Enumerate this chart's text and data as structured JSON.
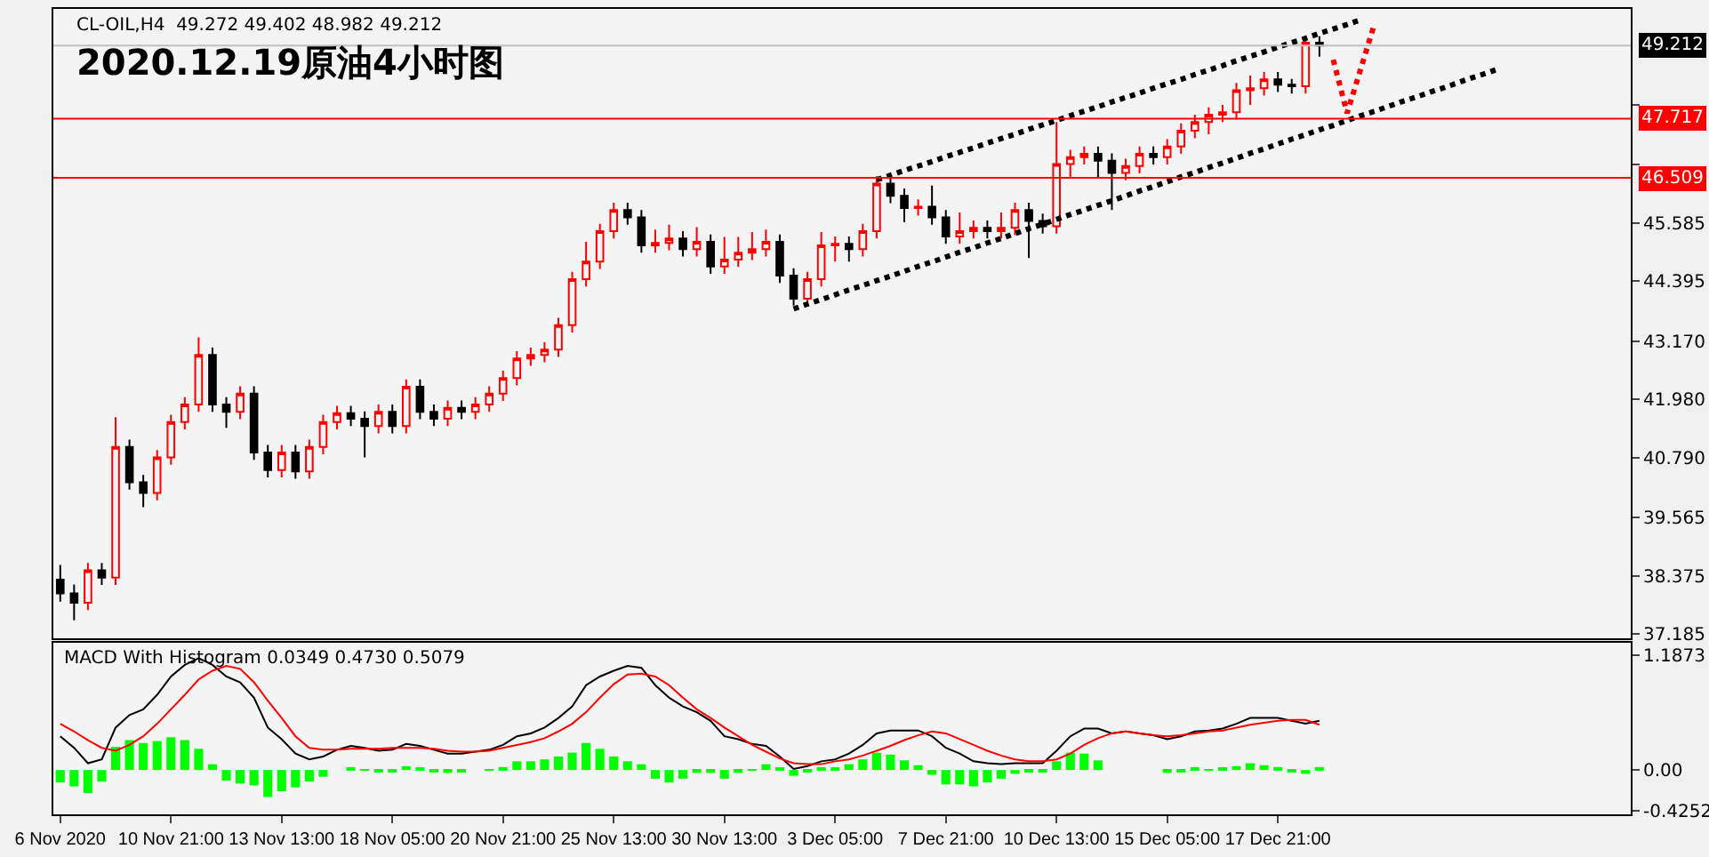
{
  "chart_data": [
    {
      "type": "candlestick",
      "title": "2020.12.19原油4小时图",
      "subtitle": "CL-OIL,H4  49.272 49.402 48.982 49.212",
      "categories": [
        null,
        null,
        null,
        null,
        null,
        null,
        null,
        null,
        null,
        null,
        null,
        null,
        null,
        null,
        null,
        null,
        null,
        null,
        null,
        null,
        null,
        null,
        null,
        null,
        null,
        null,
        null,
        null,
        null,
        null,
        null,
        null,
        null,
        null,
        null,
        null,
        null,
        null,
        null,
        null,
        null,
        null,
        null,
        null,
        null,
        null,
        null,
        null,
        null,
        null,
        null,
        null,
        null,
        null,
        null,
        null,
        null,
        null,
        null,
        null,
        null,
        null,
        null,
        null,
        null,
        null,
        null,
        null,
        null,
        null,
        null,
        null,
        null,
        null,
        null,
        null,
        null,
        null,
        null,
        null,
        null,
        null,
        null,
        null,
        null,
        null,
        null,
        null,
        null,
        null,
        null,
        null,
        null,
        null,
        null,
        null,
        null,
        null,
        null,
        null,
        null,
        null,
        null,
        null,
        null,
        null,
        null,
        null,
        null,
        null,
        null,
        null,
        null,
        null
      ],
      "ohlc": [
        [
          38.3,
          38.6,
          37.85,
          38.02
        ],
        [
          38.02,
          38.2,
          37.47,
          37.83
        ],
        [
          37.83,
          38.64,
          37.68,
          38.49
        ],
        [
          38.49,
          38.64,
          38.19,
          38.34
        ],
        [
          38.34,
          41.62,
          38.19,
          41.01
        ],
        [
          41.01,
          41.16,
          40.14,
          40.29
        ],
        [
          40.29,
          40.44,
          39.78,
          40.07
        ],
        [
          40.07,
          40.95,
          39.92,
          40.8
        ],
        [
          40.8,
          41.67,
          40.65,
          41.52
        ],
        [
          41.52,
          42.03,
          41.37,
          41.88
        ],
        [
          41.88,
          43.25,
          41.73,
          42.89
        ],
        [
          42.89,
          43.04,
          41.73,
          41.88
        ],
        [
          41.88,
          42.03,
          41.4,
          41.73
        ],
        [
          41.73,
          42.25,
          41.58,
          42.1
        ],
        [
          42.1,
          42.25,
          40.75,
          40.9
        ],
        [
          40.9,
          41.05,
          40.39,
          40.54
        ],
        [
          40.54,
          41.05,
          40.39,
          40.9
        ],
        [
          40.9,
          41.05,
          40.36,
          40.51
        ],
        [
          40.51,
          41.16,
          40.36,
          41.01
        ],
        [
          41.01,
          41.67,
          40.86,
          41.52
        ],
        [
          41.52,
          41.85,
          41.37,
          41.7
        ],
        [
          41.7,
          41.85,
          41.44,
          41.59
        ],
        [
          41.59,
          41.74,
          40.8,
          41.44
        ],
        [
          41.44,
          41.88,
          41.29,
          41.73
        ],
        [
          41.73,
          41.88,
          41.29,
          41.44
        ],
        [
          41.44,
          42.39,
          41.29,
          42.24
        ],
        [
          42.24,
          42.39,
          41.58,
          41.73
        ],
        [
          41.73,
          41.88,
          41.44,
          41.59
        ],
        [
          41.59,
          41.96,
          41.44,
          41.81
        ],
        [
          41.81,
          41.96,
          41.58,
          41.73
        ],
        [
          41.73,
          42.03,
          41.58,
          41.88
        ],
        [
          41.88,
          42.25,
          41.73,
          42.1
        ],
        [
          42.1,
          42.57,
          41.95,
          42.42
        ],
        [
          42.42,
          42.97,
          42.27,
          42.82
        ],
        [
          42.82,
          43.04,
          42.67,
          42.89
        ],
        [
          42.89,
          43.15,
          42.74,
          43.0
        ],
        [
          43.0,
          43.65,
          42.85,
          43.5
        ],
        [
          43.5,
          44.59,
          43.35,
          44.44
        ],
        [
          44.44,
          45.2,
          44.29,
          44.8
        ],
        [
          44.8,
          45.57,
          44.65,
          45.42
        ],
        [
          45.42,
          46.0,
          45.27,
          45.85
        ],
        [
          45.85,
          46.0,
          45.55,
          45.7
        ],
        [
          45.7,
          45.85,
          44.98,
          45.13
        ],
        [
          45.13,
          45.45,
          44.98,
          45.18
        ],
        [
          45.18,
          45.55,
          45.03,
          45.27
        ],
        [
          45.27,
          45.42,
          44.9,
          45.05
        ],
        [
          45.05,
          45.5,
          44.9,
          45.2
        ],
        [
          45.2,
          45.35,
          44.55,
          44.7
        ],
        [
          44.7,
          45.3,
          44.55,
          44.84
        ],
        [
          44.84,
          45.3,
          44.69,
          44.98
        ],
        [
          44.98,
          45.4,
          44.83,
          45.05
        ],
        [
          45.05,
          45.45,
          44.9,
          45.2
        ],
        [
          45.2,
          45.35,
          44.36,
          44.51
        ],
        [
          44.51,
          44.66,
          43.9,
          44.04
        ],
        [
          44.04,
          44.59,
          43.95,
          44.44
        ],
        [
          44.44,
          45.4,
          44.29,
          45.13
        ],
        [
          45.13,
          45.31,
          44.8,
          45.16
        ],
        [
          45.16,
          45.31,
          44.8,
          45.05
        ],
        [
          45.05,
          45.57,
          44.9,
          45.42
        ],
        [
          45.42,
          46.54,
          45.27,
          46.39
        ],
        [
          46.39,
          46.54,
          45.99,
          46.14
        ],
        [
          46.14,
          46.29,
          45.6,
          45.89
        ],
        [
          45.89,
          46.07,
          45.74,
          45.92
        ],
        [
          45.92,
          46.35,
          45.55,
          45.7
        ],
        [
          45.7,
          45.85,
          45.16,
          45.31
        ],
        [
          45.31,
          45.8,
          45.16,
          45.42
        ],
        [
          45.42,
          45.64,
          45.27,
          45.49
        ],
        [
          45.49,
          45.64,
          45.27,
          45.42
        ],
        [
          45.42,
          45.8,
          45.27,
          45.49
        ],
        [
          45.49,
          46.0,
          45.34,
          45.85
        ],
        [
          45.85,
          46.0,
          44.87,
          45.63
        ],
        [
          45.63,
          45.78,
          45.37,
          45.52
        ],
        [
          45.52,
          47.65,
          45.37,
          46.79
        ],
        [
          46.79,
          47.08,
          46.5,
          46.93
        ],
        [
          46.93,
          47.15,
          46.78,
          47.0
        ],
        [
          47.0,
          47.15,
          46.5,
          46.86
        ],
        [
          46.86,
          47.01,
          45.85,
          46.61
        ],
        [
          46.61,
          46.9,
          46.46,
          46.75
        ],
        [
          46.75,
          47.15,
          46.6,
          47.0
        ],
        [
          47.0,
          47.15,
          46.78,
          46.93
        ],
        [
          46.93,
          47.3,
          46.78,
          47.15
        ],
        [
          47.15,
          47.62,
          47.0,
          47.47
        ],
        [
          47.47,
          47.8,
          47.32,
          47.65
        ],
        [
          47.65,
          47.95,
          47.4,
          47.8
        ],
        [
          47.8,
          48.0,
          47.65,
          47.85
        ],
        [
          47.85,
          48.45,
          47.7,
          48.3
        ],
        [
          48.3,
          48.6,
          48.0,
          48.34
        ],
        [
          48.34,
          48.67,
          48.19,
          48.52
        ],
        [
          48.52,
          48.67,
          48.26,
          48.41
        ],
        [
          48.41,
          48.53,
          48.23,
          48.38
        ],
        [
          48.38,
          49.35,
          48.23,
          49.27
        ],
        [
          49.272,
          49.402,
          48.982,
          49.212
        ],
        null,
        null,
        null,
        null,
        null,
        null,
        null,
        null,
        null,
        null,
        null,
        null,
        null,
        null,
        null,
        null,
        null,
        null,
        null,
        null,
        null,
        null
      ],
      "colors": [
        "#000000",
        "#000000",
        "#ff0000",
        "#000000",
        "#ff0000",
        "#000000",
        "#000000",
        "#ff0000",
        "#ff0000",
        "#ff0000",
        "#ff0000",
        "#000000",
        "#000000",
        "#ff0000",
        "#000000",
        "#000000",
        "#ff0000",
        "#000000",
        "#ff0000",
        "#ff0000",
        "#ff0000",
        "#000000",
        "#000000",
        "#ff0000",
        "#000000",
        "#ff0000",
        "#000000",
        "#000000",
        "#ff0000",
        "#000000",
        "#ff0000",
        "#ff0000",
        "#ff0000",
        "#ff0000",
        "#ff0000",
        "#ff0000",
        "#ff0000",
        "#ff0000",
        "#ff0000",
        "#ff0000",
        "#ff0000",
        "#000000",
        "#000000",
        "#ff0000",
        "#ff0000",
        "#000000",
        "#ff0000",
        "#000000",
        "#ff0000",
        "#ff0000",
        "#ff0000",
        "#ff0000",
        "#000000",
        "#000000",
        "#ff0000",
        "#ff0000",
        "#ff0000",
        "#000000",
        "#ff0000",
        "#ff0000",
        "#000000",
        "#000000",
        "#ff0000",
        "#000000",
        "#000000",
        "#ff0000",
        "#ff0000",
        "#000000",
        "#ff0000",
        "#ff0000",
        "#000000",
        "#000000",
        "#ff0000",
        "#ff0000",
        "#ff0000",
        "#000000",
        "#000000",
        "#ff0000",
        "#ff0000",
        "#000000",
        "#ff0000",
        "#ff0000",
        "#ff0000",
        "#ff0000",
        "#ff0000",
        "#ff0000",
        "#ff0000",
        "#ff0000",
        "#000000",
        "#000000",
        "#ff0000",
        "#000000",
        null,
        null,
        null,
        null,
        null,
        null,
        null,
        null,
        null,
        null,
        null,
        null,
        null,
        null,
        null,
        null,
        null,
        null,
        null,
        null,
        null,
        null
      ],
      "series": [
        {
          "type": "line",
          "color": "#000000",
          "line_style": "dotted",
          "values": [
            null,
            null,
            null,
            null,
            null,
            null,
            null,
            null,
            null,
            null,
            null,
            null,
            null,
            null,
            null,
            null,
            null,
            null,
            null,
            null,
            null,
            null,
            null,
            null,
            null,
            null,
            null,
            null,
            null,
            null,
            null,
            null,
            null,
            null,
            null,
            null,
            null,
            null,
            null,
            null,
            null,
            null,
            null,
            null,
            null,
            null,
            null,
            null,
            null,
            null,
            null,
            null,
            null,
            43.83,
            43.93,
            44.02,
            44.12,
            44.22,
            44.31,
            44.41,
            44.5,
            44.6,
            44.7,
            44.79,
            44.89,
            44.99,
            45.08,
            45.18,
            45.27,
            45.37,
            45.47,
            45.56,
            45.66,
            45.76,
            45.85,
            45.95,
            46.04,
            46.14,
            46.24,
            46.33,
            46.43,
            46.53,
            46.62,
            46.72,
            46.81,
            46.91,
            47.01,
            47.1,
            47.2,
            47.3,
            47.39,
            47.49,
            47.58,
            47.68,
            47.78,
            47.87,
            47.97,
            48.07,
            48.16,
            48.26,
            48.35,
            48.45,
            48.55,
            48.64,
            48.74,
            null,
            null,
            null,
            null,
            null,
            null,
            null,
            null,
            null
          ]
        },
        {
          "type": "line",
          "color": "#000000",
          "line_style": "dotted",
          "values": [
            null,
            null,
            null,
            null,
            null,
            null,
            null,
            null,
            null,
            null,
            null,
            null,
            null,
            null,
            null,
            null,
            null,
            null,
            null,
            null,
            null,
            null,
            null,
            null,
            null,
            null,
            null,
            null,
            null,
            null,
            null,
            null,
            null,
            null,
            null,
            null,
            null,
            null,
            null,
            null,
            null,
            null,
            null,
            null,
            null,
            null,
            null,
            null,
            null,
            null,
            null,
            null,
            null,
            null,
            null,
            null,
            null,
            null,
            null,
            46.47,
            46.56,
            46.66,
            46.75,
            46.84,
            46.94,
            47.03,
            47.12,
            47.22,
            47.31,
            47.4,
            47.5,
            47.59,
            47.68,
            47.78,
            47.87,
            47.96,
            48.06,
            48.15,
            48.24,
            48.34,
            48.43,
            48.52,
            48.62,
            48.71,
            48.8,
            48.9,
            48.99,
            49.08,
            49.18,
            49.27,
            49.36,
            49.46,
            49.55,
            49.64,
            49.74,
            null,
            null,
            null,
            null,
            null,
            null,
            null,
            null,
            null,
            null,
            null,
            null,
            null,
            null,
            null,
            null,
            null,
            null,
            null
          ]
        },
        {
          "type": "line",
          "color": "#ff0000",
          "line_style": "dotted",
          "values": [
            null,
            null,
            null,
            null,
            null,
            null,
            null,
            null,
            null,
            null,
            null,
            null,
            null,
            null,
            null,
            null,
            null,
            null,
            null,
            null,
            null,
            null,
            null,
            null,
            null,
            null,
            null,
            null,
            null,
            null,
            null,
            null,
            null,
            null,
            null,
            null,
            null,
            null,
            null,
            null,
            null,
            null,
            null,
            null,
            null,
            null,
            null,
            null,
            null,
            null,
            null,
            null,
            null,
            null,
            null,
            null,
            null,
            null,
            null,
            null,
            null,
            null,
            null,
            null,
            null,
            null,
            null,
            null,
            null,
            null,
            null,
            null,
            null,
            null,
            null,
            null,
            null,
            null,
            null,
            null,
            null,
            null,
            null,
            null,
            null,
            null,
            null,
            null,
            null,
            null,
            null,
            null,
            48.92,
            47.83,
            48.75,
            49.67,
            null,
            null,
            null,
            null,
            null,
            null,
            null,
            null,
            null,
            null,
            null,
            null,
            null,
            null,
            null,
            null,
            null,
            null
          ]
        }
      ],
      "ref_lines": [
        {
          "axis": "y",
          "value": 47.717,
          "label": "47.717",
          "color": "#ff0000"
        },
        {
          "axis": "y",
          "value": 46.509,
          "label": "46.509",
          "color": "#ff0000"
        },
        {
          "axis": "y",
          "value": 49.212,
          "label": "49.212",
          "color": "#c0c0c0"
        }
      ],
      "ylim": [
        37.11,
        49.96
      ],
      "yticks": [
        37.185,
        38.375,
        39.565,
        {
          "value": 40.79,
          "label": "40.790"
        },
        {
          "value": 41.98,
          "label": "41.980"
        },
        {
          "value": 43.17,
          "label": "43.170"
        },
        44.395,
        45.585,
        {
          "value": 46.775,
          "label": null
        },
        {
          "value": 48.0,
          "label": null
        }
      ],
      "grid": false
    },
    {
      "type": "bar",
      "title": "MACD With Histogram 0.0349 0.4730 0.5079",
      "categories": [
        "6 Nov 2020",
        null,
        null,
        null,
        null,
        null,
        null,
        null,
        "10 Nov 21:00",
        null,
        null,
        null,
        null,
        null,
        null,
        null,
        "13 Nov 13:00",
        null,
        null,
        null,
        null,
        null,
        null,
        null,
        "18 Nov 05:00",
        null,
        null,
        null,
        null,
        null,
        null,
        null,
        "20 Nov 21:00",
        null,
        null,
        null,
        null,
        null,
        null,
        null,
        "25 Nov 13:00",
        null,
        null,
        null,
        null,
        null,
        null,
        null,
        "30 Nov 13:00",
        null,
        null,
        null,
        null,
        null,
        null,
        null,
        "3 Dec 05:00",
        null,
        null,
        null,
        null,
        null,
        null,
        null,
        "7 Dec 21:00",
        null,
        null,
        null,
        null,
        null,
        null,
        null,
        "10 Dec 13:00",
        null,
        null,
        null,
        null,
        null,
        null,
        null,
        "15 Dec 05:00",
        null,
        null,
        null,
        null,
        null,
        null,
        null,
        "17 Dec 21:00",
        null,
        null,
        null,
        null,
        null,
        null,
        null,
        null,
        null,
        null,
        null,
        null,
        null,
        null,
        null,
        null,
        null,
        null,
        null,
        null,
        null,
        null,
        null,
        null,
        null
      ],
      "series": [
        {
          "type": "bar",
          "color": "#00ff00",
          "values": [
            -0.13,
            -0.17,
            -0.24,
            -0.12,
            0.24,
            0.31,
            0.28,
            0.3,
            0.34,
            0.31,
            0.22,
            0.06,
            -0.11,
            -0.14,
            -0.16,
            -0.28,
            -0.22,
            -0.18,
            -0.12,
            -0.07,
            0.0,
            0.03,
            0.01,
            -0.02,
            -0.02,
            0.04,
            0.02,
            -0.01,
            -0.03,
            -0.02,
            0.0,
            0.01,
            0.03,
            0.09,
            0.09,
            0.11,
            0.14,
            0.18,
            0.28,
            0.22,
            0.14,
            0.09,
            0.06,
            -0.09,
            -0.13,
            -0.09,
            -0.03,
            -0.03,
            -0.09,
            -0.03,
            0.01,
            0.06,
            0.02,
            -0.06,
            -0.02,
            0.03,
            0.02,
            0.06,
            0.11,
            0.18,
            0.16,
            0.1,
            0.05,
            -0.05,
            -0.15,
            -0.15,
            -0.17,
            -0.13,
            -0.09,
            -0.04,
            -0.02,
            -0.02,
            0.09,
            0.18,
            0.17,
            0.1,
            0.0,
            0.0,
            0.0,
            0.0,
            -0.03,
            -0.01,
            0.02,
            0.01,
            0.02,
            0.04,
            0.07,
            0.05,
            0.03,
            -0.01,
            -0.04,
            0.03,
            null,
            null,
            null,
            null,
            null,
            null,
            null,
            null,
            null,
            null,
            null,
            null,
            null,
            null,
            null,
            null,
            null,
            null,
            null,
            null,
            null,
            null
          ]
        },
        {
          "type": "line",
          "color": "#000000",
          "values": [
            0.35,
            0.23,
            0.07,
            0.11,
            0.44,
            0.57,
            0.63,
            0.78,
            0.97,
            1.09,
            1.16,
            1.09,
            0.97,
            0.91,
            0.75,
            0.44,
            0.32,
            0.17,
            0.11,
            0.14,
            0.21,
            0.25,
            0.23,
            0.2,
            0.21,
            0.27,
            0.25,
            0.21,
            0.17,
            0.17,
            0.19,
            0.21,
            0.26,
            0.35,
            0.38,
            0.44,
            0.54,
            0.66,
            0.88,
            0.97,
            1.03,
            1.08,
            1.06,
            0.88,
            0.75,
            0.66,
            0.6,
            0.51,
            0.35,
            0.32,
            0.27,
            0.25,
            0.14,
            0.01,
            0.04,
            0.09,
            0.11,
            0.17,
            0.26,
            0.38,
            0.41,
            0.41,
            0.41,
            0.35,
            0.23,
            0.17,
            0.09,
            0.07,
            0.06,
            0.07,
            0.07,
            0.07,
            0.2,
            0.35,
            0.43,
            0.43,
            0.38,
            0.4,
            0.38,
            0.36,
            0.32,
            0.35,
            0.4,
            0.41,
            0.43,
            0.48,
            0.54,
            0.54,
            0.54,
            0.51,
            0.48,
            0.51,
            null,
            null,
            null,
            null,
            null,
            null,
            null,
            null,
            null,
            null,
            null,
            null,
            null,
            null,
            null,
            null,
            null,
            null,
            null,
            null,
            null,
            null
          ]
        },
        {
          "type": "line",
          "color": "#ff0000",
          "values": [
            0.48,
            0.4,
            0.31,
            0.23,
            0.2,
            0.26,
            0.35,
            0.48,
            0.63,
            0.78,
            0.94,
            1.03,
            1.08,
            1.05,
            0.91,
            0.72,
            0.54,
            0.35,
            0.23,
            0.21,
            0.21,
            0.22,
            0.22,
            0.22,
            0.23,
            0.23,
            0.23,
            0.22,
            0.2,
            0.19,
            0.19,
            0.2,
            0.23,
            0.26,
            0.29,
            0.33,
            0.4,
            0.48,
            0.6,
            0.75,
            0.89,
            0.99,
            1.0,
            0.97,
            0.88,
            0.75,
            0.63,
            0.54,
            0.44,
            0.35,
            0.26,
            0.19,
            0.12,
            0.07,
            0.06,
            0.06,
            0.09,
            0.11,
            0.15,
            0.2,
            0.25,
            0.31,
            0.36,
            0.4,
            0.38,
            0.32,
            0.26,
            0.2,
            0.15,
            0.11,
            0.09,
            0.09,
            0.11,
            0.17,
            0.26,
            0.33,
            0.38,
            0.4,
            0.38,
            0.36,
            0.35,
            0.36,
            0.38,
            0.4,
            0.41,
            0.44,
            0.47,
            0.49,
            0.51,
            0.52,
            0.52,
            0.47,
            null,
            null,
            null,
            null,
            null,
            null,
            null,
            null,
            null,
            null,
            null,
            null,
            null,
            null,
            null,
            null,
            null,
            null,
            null,
            null,
            null,
            null
          ]
        }
      ],
      "ylim": [
        -0.46,
        1.32
      ],
      "yticks": [
        1.1873,
        {
          "value": 0,
          "label": "0.00"
        },
        -0.4252
      ],
      "grid": false
    }
  ]
}
